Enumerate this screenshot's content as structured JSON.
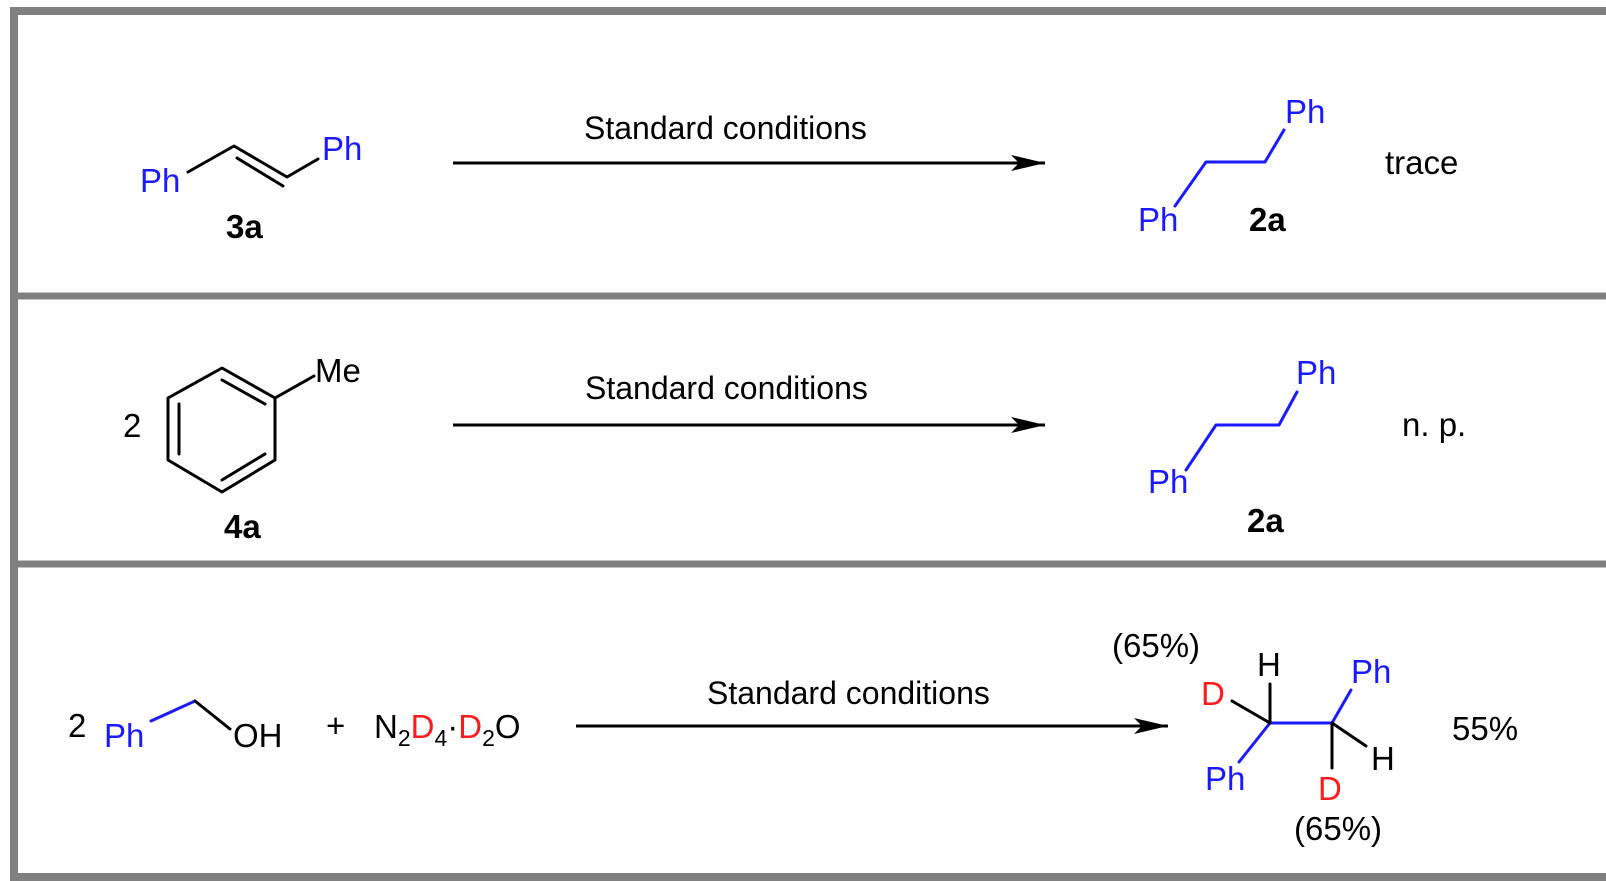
{
  "panels": [
    {
      "reactant_label": "3a",
      "reactant_groups": [
        "Ph",
        "Ph"
      ],
      "conditions": "Standard conditions",
      "product_label": "2a",
      "product_groups": [
        "Ph",
        "Ph"
      ],
      "result": "trace"
    },
    {
      "coefficient": "2",
      "reactant_label": "4a",
      "substituent": "Me",
      "conditions": "Standard conditions",
      "product_label": "2a",
      "product_groups": [
        "Ph",
        "Ph"
      ],
      "result": "n. p."
    },
    {
      "coefficient": "2",
      "reactant_groups": [
        "Ph",
        "OH"
      ],
      "plus": "+",
      "reagent": {
        "n": "N",
        "n_sub": "2",
        "d": "D",
        "d_sub": "4",
        "dot": "·",
        "d2": "D",
        "d2_sub": "2",
        "o": "O"
      },
      "conditions": "Standard conditions",
      "product_atoms": {
        "h_top": "H",
        "h_bottom": "H",
        "d_left": "D",
        "d_bottom": "D",
        "ph_top": "Ph",
        "ph_bottom": "Ph"
      },
      "deuteration_top": "(65%)",
      "deuteration_bottom": "(65%)",
      "result": "55%"
    }
  ],
  "colors": {
    "border": "#808080",
    "group": "#1a1aff",
    "deuterium": "#ff1a1a",
    "bond": "#000000"
  }
}
